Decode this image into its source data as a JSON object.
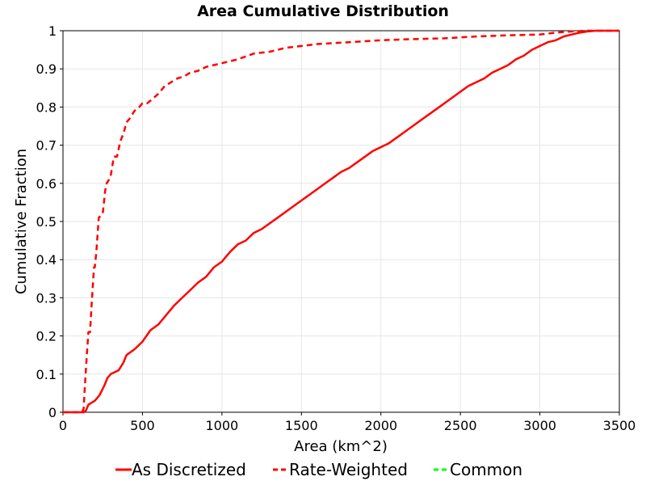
{
  "chart_data": {
    "type": "line",
    "title": "Area Cumulative Distribution",
    "xlabel": "Area (km^2)",
    "ylabel": "Cumulative Fraction",
    "xlim": [
      0,
      3500
    ],
    "ylim": [
      0,
      1
    ],
    "x_ticks": [
      "0",
      "500",
      "1000",
      "1500",
      "2000",
      "2500",
      "3000",
      "3500"
    ],
    "y_ticks": [
      "0",
      "0.1",
      "0.2",
      "0.3",
      "0.4",
      "0.5",
      "0.6",
      "0.7",
      "0.8",
      "0.9",
      "1"
    ],
    "grid": true,
    "legend_position": "bottom",
    "series": [
      {
        "name": "As Discretized",
        "color": "#ff0000",
        "line_style": "solid",
        "x": [
          0,
          130,
          145,
          160,
          180,
          200,
          230,
          260,
          280,
          300,
          350,
          380,
          400,
          450,
          500,
          550,
          600,
          650,
          700,
          750,
          800,
          850,
          900,
          950,
          1000,
          1050,
          1100,
          1150,
          1200,
          1250,
          1300,
          1350,
          1400,
          1450,
          1500,
          1550,
          1600,
          1650,
          1700,
          1750,
          1800,
          1850,
          1900,
          1950,
          2000,
          2050,
          2100,
          2150,
          2200,
          2250,
          2300,
          2350,
          2400,
          2450,
          2500,
          2550,
          2600,
          2650,
          2700,
          2750,
          2800,
          2850,
          2900,
          2950,
          3000,
          3050,
          3100,
          3150,
          3200,
          3250,
          3300,
          3350,
          3400,
          3450,
          3500
        ],
        "y": [
          0,
          0,
          0.005,
          0.02,
          0.025,
          0.03,
          0.045,
          0.07,
          0.09,
          0.1,
          0.11,
          0.13,
          0.15,
          0.165,
          0.185,
          0.215,
          0.23,
          0.255,
          0.28,
          0.3,
          0.32,
          0.34,
          0.355,
          0.38,
          0.395,
          0.42,
          0.44,
          0.45,
          0.47,
          0.48,
          0.495,
          0.51,
          0.525,
          0.54,
          0.555,
          0.57,
          0.585,
          0.6,
          0.615,
          0.63,
          0.64,
          0.655,
          0.67,
          0.685,
          0.695,
          0.705,
          0.72,
          0.735,
          0.75,
          0.765,
          0.78,
          0.795,
          0.81,
          0.825,
          0.84,
          0.855,
          0.865,
          0.875,
          0.89,
          0.9,
          0.91,
          0.925,
          0.935,
          0.95,
          0.96,
          0.97,
          0.975,
          0.985,
          0.99,
          0.995,
          0.998,
          1,
          1,
          1,
          1
        ]
      },
      {
        "name": "Rate-Weighted",
        "color": "#ff0000",
        "line_style": "dashed",
        "x": [
          0,
          120,
          130,
          135,
          150,
          160,
          170,
          180,
          195,
          200,
          210,
          225,
          250,
          265,
          275,
          290,
          300,
          320,
          340,
          360,
          380,
          400,
          420,
          450,
          480,
          500,
          530,
          560,
          600,
          640,
          680,
          720,
          760,
          800,
          850,
          900,
          950,
          1000,
          1100,
          1200,
          1300,
          1400,
          1500,
          1600,
          1800,
          2000,
          2200,
          2400,
          2600,
          2800,
          3000,
          3100,
          3200,
          3300,
          3400,
          3500
        ],
        "y": [
          0,
          0,
          0.01,
          0.05,
          0.15,
          0.21,
          0.21,
          0.28,
          0.38,
          0.38,
          0.42,
          0.51,
          0.52,
          0.58,
          0.6,
          0.61,
          0.62,
          0.67,
          0.67,
          0.71,
          0.73,
          0.76,
          0.77,
          0.79,
          0.8,
          0.81,
          0.81,
          0.82,
          0.835,
          0.855,
          0.865,
          0.875,
          0.88,
          0.89,
          0.895,
          0.905,
          0.91,
          0.915,
          0.925,
          0.94,
          0.945,
          0.955,
          0.96,
          0.965,
          0.97,
          0.975,
          0.978,
          0.98,
          0.985,
          0.988,
          0.99,
          0.995,
          0.998,
          1,
          1,
          1
        ]
      },
      {
        "name": "Common",
        "color": "#00ff00",
        "line_style": "dashed",
        "x": [],
        "y": []
      }
    ]
  }
}
